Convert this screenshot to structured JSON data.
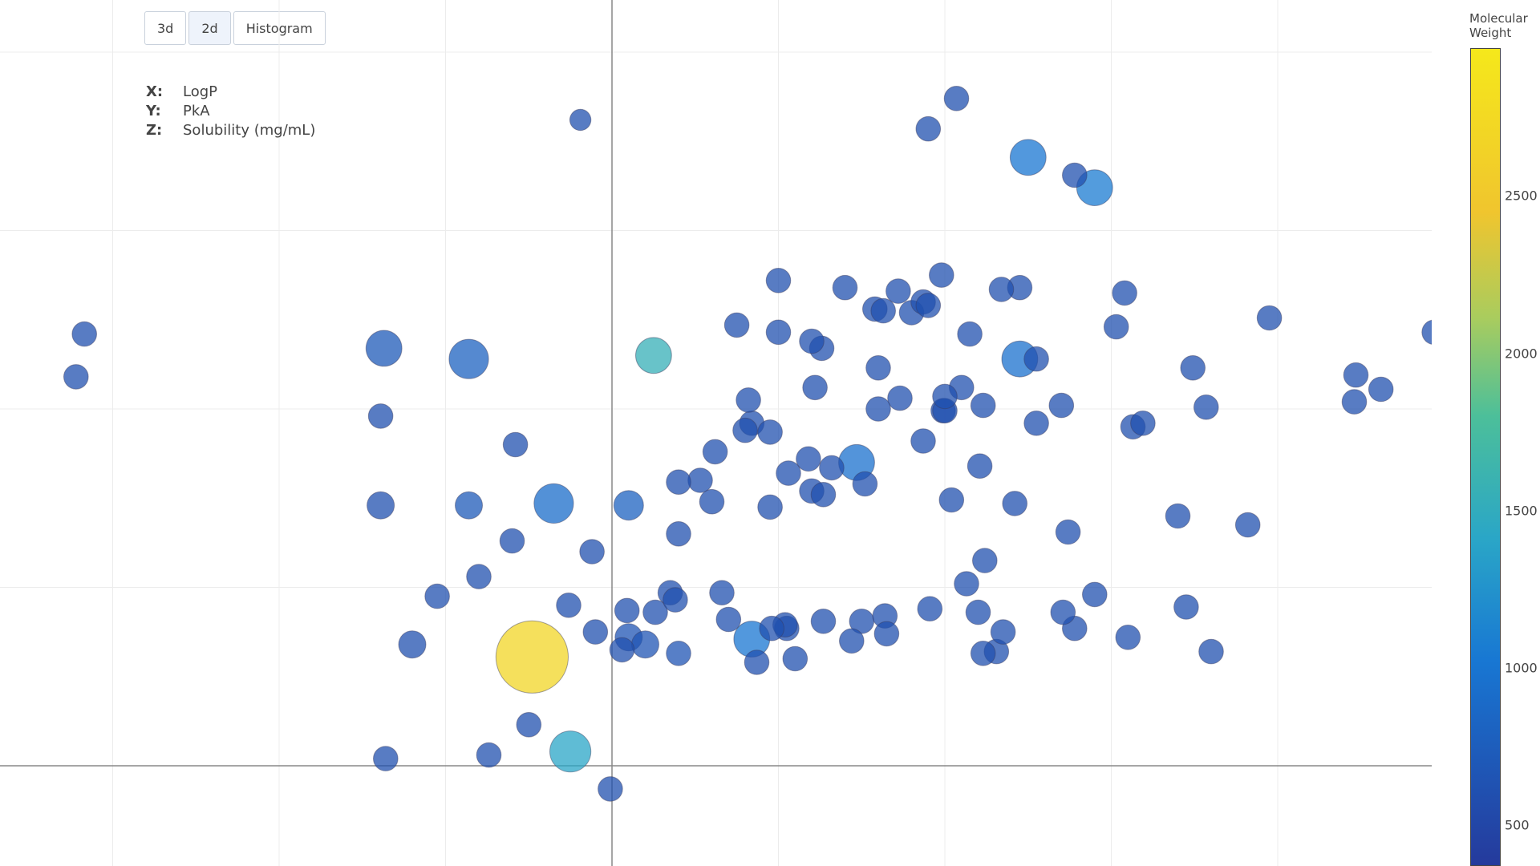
{
  "toolbar": {
    "buttons": [
      {
        "label": "3d",
        "active": false
      },
      {
        "label": "2d",
        "active": true
      },
      {
        "label": "Histogram",
        "active": false
      }
    ]
  },
  "axis_labels": [
    {
      "key": "X:",
      "value": "LogP"
    },
    {
      "key": "Y:",
      "value": "PkA"
    },
    {
      "key": "Z:",
      "value": "Solubility (mg/mL)"
    }
  ],
  "colorbar": {
    "title_line1": "Molecular",
    "title_line2": "Weight",
    "ticks": [
      "2500",
      "2000",
      "1500",
      "1000",
      "500"
    ],
    "tick_values": [
      2500,
      2000,
      1500,
      1000,
      500
    ],
    "range": [
      370,
      2970
    ]
  },
  "chart_data": {
    "type": "scatter",
    "xlabel": "LogP",
    "ylabel": "PkA",
    "zlabel": "Solubility (mg/mL)",
    "color_label": "Molecular Weight",
    "grid": true,
    "xlim": [
      -3.67,
      4.94
    ],
    "ylim": [
      -0.57,
      4.3
    ],
    "point_fields": [
      "x",
      "y",
      "z",
      "mw"
    ],
    "points": [
      [
        -3.17,
        2.42,
        3,
        600
      ],
      [
        -3.22,
        2.18,
        3,
        600
      ],
      [
        -1.37,
        2.34,
        8,
        700
      ],
      [
        -0.86,
        2.28,
        10,
        800
      ],
      [
        -1.39,
        1.96,
        3,
        600
      ],
      [
        -1.39,
        1.46,
        4,
        600
      ],
      [
        -0.86,
        1.46,
        4,
        700
      ],
      [
        -1.2,
        0.68,
        4,
        600
      ],
      [
        -0.48,
        0.61,
        40,
        2700
      ],
      [
        -0.35,
        1.47,
        10,
        900
      ],
      [
        -0.5,
        0.23,
        3,
        600
      ],
      [
        -0.19,
        3.62,
        2,
        600
      ],
      [
        -1.36,
        0.04,
        3,
        600
      ],
      [
        -0.74,
        0.06,
        3,
        600
      ],
      [
        -0.25,
        0.08,
        11,
        1400
      ],
      [
        -0.01,
        -0.13,
        3,
        600
      ],
      [
        -0.12,
        1.2,
        3,
        600
      ],
      [
        0.06,
        0.65,
        3,
        600
      ],
      [
        0.09,
        0.87,
        3,
        600
      ],
      [
        0.1,
        1.46,
        5,
        800
      ],
      [
        0.25,
        2.3,
        8,
        1550
      ],
      [
        0.1,
        0.72,
        4,
        650
      ],
      [
        0.2,
        0.68,
        4,
        650
      ],
      [
        0.4,
        0.63,
        3,
        650
      ],
      [
        0.35,
        0.97,
        3,
        600
      ],
      [
        0.53,
        1.6,
        3,
        600
      ],
      [
        0.6,
        1.48,
        3,
        600
      ],
      [
        0.84,
        1.92,
        3,
        600
      ],
      [
        0.84,
        0.71,
        8,
        1000
      ],
      [
        0.87,
        0.58,
        3,
        600
      ],
      [
        0.95,
        1.87,
        3,
        600
      ],
      [
        0.95,
        1.45,
        3,
        600
      ],
      [
        1.0,
        2.43,
        3,
        600
      ],
      [
        1.0,
        2.72,
        3,
        600
      ],
      [
        1.05,
        0.77,
        3,
        600
      ],
      [
        1.18,
        1.72,
        3,
        600
      ],
      [
        1.2,
        1.54,
        3,
        600
      ],
      [
        1.26,
        2.34,
        3,
        600
      ],
      [
        1.27,
        1.52,
        3,
        600
      ],
      [
        1.4,
        2.68,
        3,
        600
      ],
      [
        1.5,
        0.81,
        3,
        600
      ],
      [
        1.52,
        1.58,
        3,
        600
      ],
      [
        1.58,
        2.56,
        3,
        600
      ],
      [
        1.63,
        2.55,
        3,
        600
      ],
      [
        1.72,
        2.66,
        3,
        600
      ],
      [
        1.8,
        2.54,
        3,
        600
      ],
      [
        1.87,
        2.6,
        3,
        600
      ],
      [
        1.9,
        2.58,
        3,
        600
      ],
      [
        1.87,
        1.82,
        3,
        600
      ],
      [
        1.9,
        3.57,
        3,
        600
      ],
      [
        1.99,
        1.99,
        3,
        600
      ],
      [
        2.07,
        3.74,
        3,
        600
      ],
      [
        2.1,
        2.12,
        3,
        600
      ],
      [
        2.0,
        1.99,
        3,
        600
      ],
      [
        2.04,
        1.49,
        3,
        600
      ],
      [
        2.21,
        1.68,
        3,
        600
      ],
      [
        2.23,
        2.02,
        3,
        600
      ],
      [
        2.42,
        1.47,
        3,
        600
      ],
      [
        2.45,
        2.68,
        3,
        600
      ],
      [
        2.5,
        3.41,
        8,
        1000
      ],
      [
        2.55,
        2.28,
        3,
        600
      ],
      [
        2.55,
        1.92,
        3,
        600
      ],
      [
        2.7,
        2.02,
        3,
        600
      ],
      [
        2.74,
        1.31,
        3,
        600
      ],
      [
        2.78,
        0.77,
        3,
        600
      ],
      [
        2.78,
        3.31,
        3,
        600
      ],
      [
        2.9,
        3.24,
        8,
        1050
      ],
      [
        3.03,
        2.46,
        3,
        600
      ],
      [
        3.13,
        1.9,
        3,
        600
      ],
      [
        3.19,
        1.92,
        3,
        600
      ],
      [
        3.4,
        1.4,
        3,
        600
      ],
      [
        3.49,
        2.23,
        3,
        600
      ],
      [
        3.57,
        2.01,
        3,
        600
      ],
      [
        3.82,
        1.35,
        3,
        600
      ],
      [
        3.95,
        2.51,
        3,
        600
      ],
      [
        4.46,
        2.04,
        3,
        600
      ],
      [
        4.47,
        2.19,
        3,
        600
      ],
      [
        4.94,
        2.43,
        3,
        600
      ],
      [
        4.62,
        2.11,
        3,
        600
      ],
      [
        3.6,
        0.64,
        3,
        600
      ],
      [
        3.45,
        0.89,
        3,
        600
      ],
      [
        3.1,
        0.72,
        3,
        600
      ],
      [
        2.71,
        0.86,
        3,
        600
      ],
      [
        2.31,
        0.64,
        3,
        600
      ],
      [
        1.91,
        0.88,
        3,
        600
      ],
      [
        1.44,
        0.7,
        3,
        600
      ],
      [
        1.04,
        0.79,
        3,
        600
      ],
      [
        0.66,
        0.97,
        3,
        600
      ],
      [
        0.26,
        0.86,
        3,
        600
      ],
      [
        -0.26,
        0.9,
        3,
        600
      ],
      [
        -0.8,
        1.06,
        3,
        600
      ],
      [
        -0.58,
        1.8,
        3,
        600
      ],
      [
        2.2,
        0.86,
        3,
        600
      ],
      [
        2.35,
        0.75,
        3,
        600
      ],
      [
        -0.6,
        1.26,
        3,
        600
      ],
      [
        -1.05,
        0.95,
        3,
        600
      ],
      [
        0.8,
        1.88,
        3,
        600
      ],
      [
        1.22,
        2.12,
        3,
        600
      ],
      [
        1.73,
        2.06,
        3,
        600
      ],
      [
        1.64,
        0.84,
        3,
        600
      ],
      [
        0.62,
        1.76,
        3,
        600
      ],
      [
        0.4,
        1.3,
        3,
        600
      ],
      [
        0.7,
        0.82,
        3,
        600
      ],
      [
        1.1,
        0.6,
        3,
        600
      ],
      [
        1.47,
        1.7,
        8,
        950
      ],
      [
        2.45,
        2.28,
        8,
        950
      ],
      [
        2.0,
        2.07,
        3,
        600
      ],
      [
        1.65,
        0.74,
        3,
        600
      ],
      [
        2.23,
        0.63,
        3,
        600
      ],
      [
        1.27,
        0.81,
        3,
        600
      ],
      [
        0.38,
        0.93,
        3,
        600
      ],
      [
        -0.1,
        0.75,
        3,
        600
      ],
      [
        0.82,
        2.05,
        3,
        600
      ],
      [
        1.98,
        2.75,
        3,
        600
      ],
      [
        2.15,
        2.42,
        3,
        600
      ],
      [
        2.34,
        2.67,
        3,
        600
      ],
      [
        1.6,
        2.23,
        3,
        600
      ],
      [
        3.08,
        2.65,
        3,
        600
      ],
      [
        2.24,
        1.15,
        3,
        600
      ],
      [
        0.96,
        0.77,
        3,
        600
      ],
      [
        2.9,
        0.96,
        3,
        600
      ],
      [
        1.06,
        1.64,
        3,
        600
      ],
      [
        0.4,
        1.59,
        3,
        600
      ],
      [
        1.2,
        2.38,
        3,
        600
      ],
      [
        1.32,
        1.67,
        3,
        600
      ],
      [
        1.6,
        2.0,
        3,
        600
      ],
      [
        0.75,
        2.47,
        3,
        600
      ],
      [
        2.13,
        1.02,
        3,
        600
      ]
    ]
  }
}
